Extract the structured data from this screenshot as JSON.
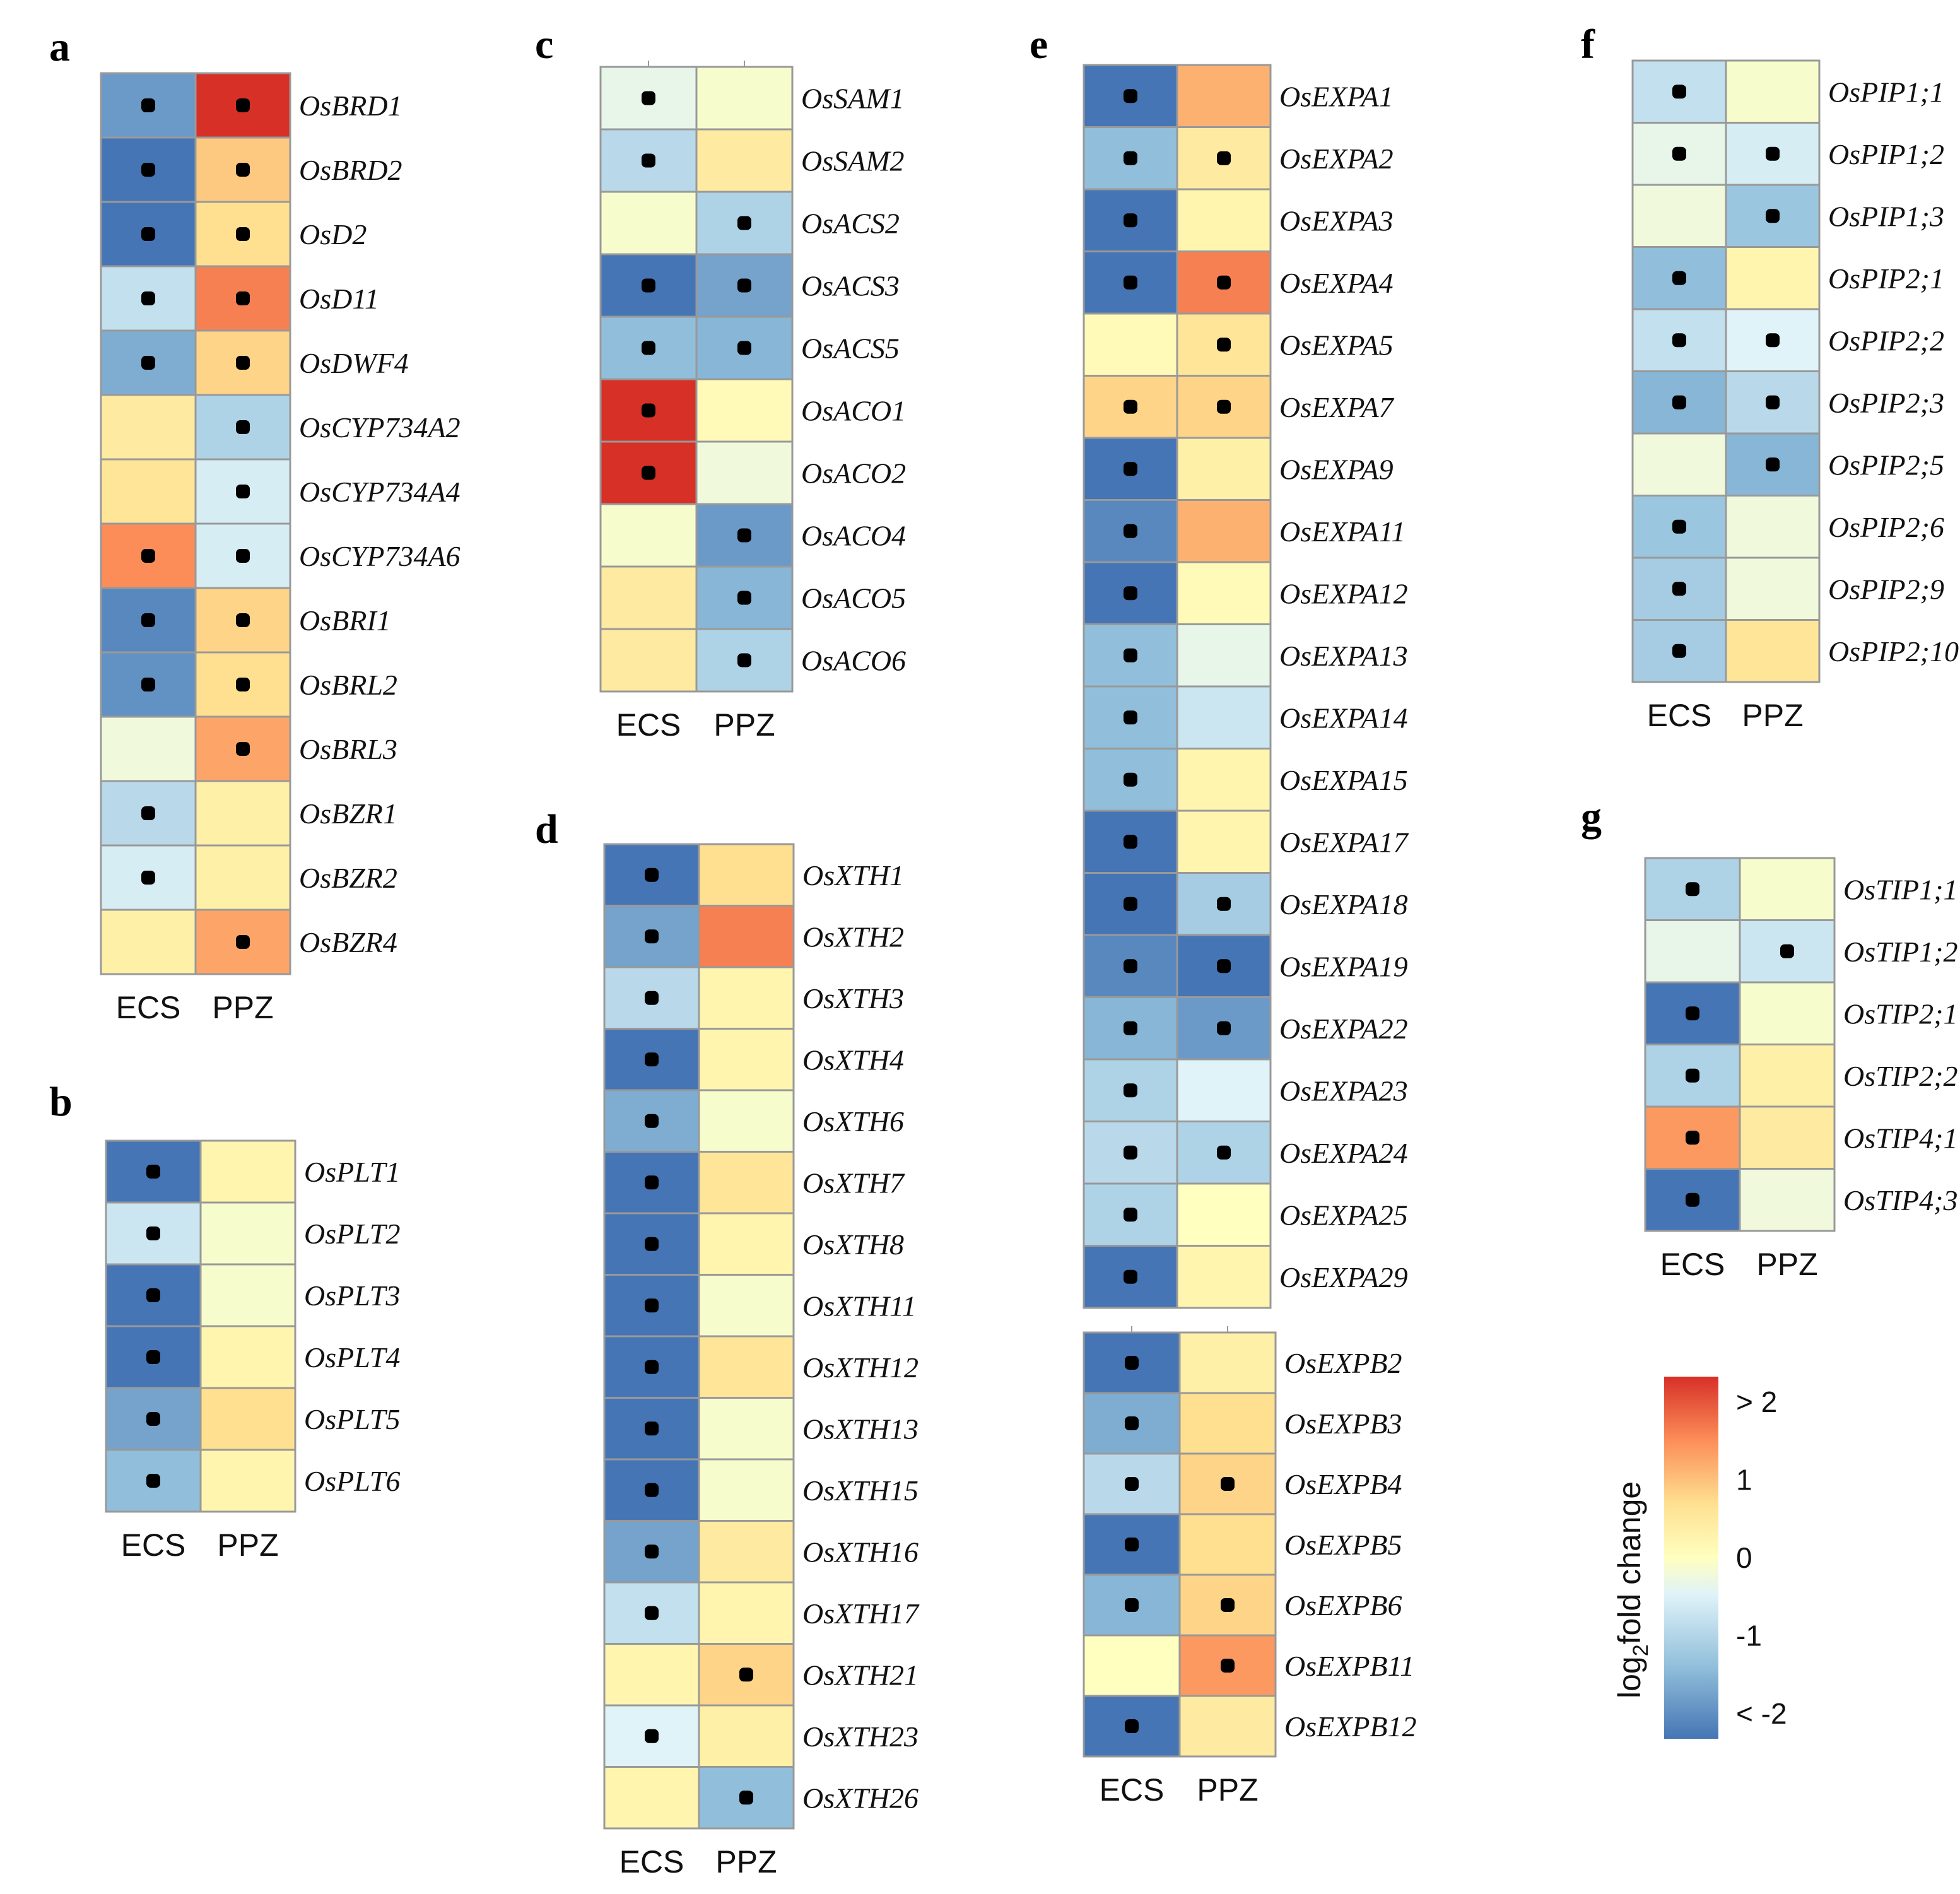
{
  "chart_data": [
    {
      "type": "heatmap",
      "panel": "a",
      "columns": [
        "ECS",
        "PPZ"
      ],
      "rows": [
        {
          "gene": "OsBRD1",
          "ECS": -1.6,
          "PPZ": 2.3,
          "sig": [
            true,
            true
          ]
        },
        {
          "gene": "OsBRD2",
          "ECS": -2.0,
          "PPZ": 0.8,
          "sig": [
            true,
            true
          ]
        },
        {
          "gene": "OsD2",
          "ECS": -2.0,
          "PPZ": 0.6,
          "sig": [
            true,
            true
          ]
        },
        {
          "gene": "OsD11",
          "ECS": -0.7,
          "PPZ": 1.4,
          "sig": [
            true,
            true
          ]
        },
        {
          "gene": "OsDWF4",
          "ECS": -1.4,
          "PPZ": 0.7,
          "sig": [
            true,
            true
          ]
        },
        {
          "gene": "OsCYP734A2",
          "ECS": 0.4,
          "PPZ": -0.9,
          "sig": [
            false,
            true
          ]
        },
        {
          "gene": "OsCYP734A4",
          "ECS": 0.5,
          "PPZ": -0.5,
          "sig": [
            false,
            true
          ]
        },
        {
          "gene": "OsCYP734A6",
          "ECS": 1.3,
          "PPZ": -0.5,
          "sig": [
            true,
            true
          ]
        },
        {
          "gene": "OsBRI1",
          "ECS": -1.8,
          "PPZ": 0.7,
          "sig": [
            true,
            true
          ]
        },
        {
          "gene": "OsBRL2",
          "ECS": -1.7,
          "PPZ": 0.6,
          "sig": [
            true,
            true
          ]
        },
        {
          "gene": "OsBRL3",
          "ECS": -0.2,
          "PPZ": 1.1,
          "sig": [
            false,
            true
          ]
        },
        {
          "gene": "OsBZR1",
          "ECS": -0.8,
          "PPZ": 0.3,
          "sig": [
            true,
            false
          ]
        },
        {
          "gene": "OsBZR2",
          "ECS": -0.5,
          "PPZ": 0.3,
          "sig": [
            true,
            false
          ]
        },
        {
          "gene": "OsBZR4",
          "ECS": 0.3,
          "PPZ": 1.1,
          "sig": [
            false,
            true
          ]
        }
      ]
    },
    {
      "type": "heatmap",
      "panel": "b",
      "columns": [
        "ECS",
        "PPZ"
      ],
      "rows": [
        {
          "gene": "OsPLT1",
          "ECS": -2.0,
          "PPZ": 0.2,
          "sig": [
            true,
            false
          ]
        },
        {
          "gene": "OsPLT2",
          "ECS": -0.6,
          "PPZ": -0.1,
          "sig": [
            true,
            false
          ]
        },
        {
          "gene": "OsPLT3",
          "ECS": -2.0,
          "PPZ": -0.1,
          "sig": [
            true,
            false
          ]
        },
        {
          "gene": "OsPLT4",
          "ECS": -2.0,
          "PPZ": 0.2,
          "sig": [
            true,
            false
          ]
        },
        {
          "gene": "OsPLT5",
          "ECS": -1.5,
          "PPZ": 0.6,
          "sig": [
            true,
            false
          ]
        },
        {
          "gene": "OsPLT6",
          "ECS": -1.2,
          "PPZ": 0.2,
          "sig": [
            true,
            false
          ]
        }
      ]
    },
    {
      "type": "heatmap",
      "panel": "c",
      "columns": [
        "ECS",
        "PPZ"
      ],
      "rows": [
        {
          "gene": "OsSAM1",
          "ECS": -0.3,
          "PPZ": -0.1,
          "sig": [
            true,
            false
          ]
        },
        {
          "gene": "OsSAM2",
          "ECS": -0.8,
          "PPZ": 0.4,
          "sig": [
            true,
            false
          ]
        },
        {
          "gene": "OsACS2",
          "ECS": -0.1,
          "PPZ": -0.9,
          "sig": [
            false,
            true
          ]
        },
        {
          "gene": "OsACS3",
          "ECS": -2.0,
          "PPZ": -1.5,
          "sig": [
            true,
            true
          ]
        },
        {
          "gene": "OsACS5",
          "ECS": -1.2,
          "PPZ": -1.3,
          "sig": [
            true,
            true
          ]
        },
        {
          "gene": "OsACO1",
          "ECS": 2.3,
          "PPZ": 0.1,
          "sig": [
            true,
            false
          ]
        },
        {
          "gene": "OsACO2",
          "ECS": 2.3,
          "PPZ": -0.2,
          "sig": [
            true,
            false
          ]
        },
        {
          "gene": "OsACO4",
          "ECS": -0.1,
          "PPZ": -1.6,
          "sig": [
            false,
            true
          ]
        },
        {
          "gene": "OsACO5",
          "ECS": 0.4,
          "PPZ": -1.3,
          "sig": [
            false,
            true
          ]
        },
        {
          "gene": "OsACO6",
          "ECS": 0.4,
          "PPZ": -0.9,
          "sig": [
            false,
            true
          ]
        }
      ]
    },
    {
      "type": "heatmap",
      "panel": "d",
      "columns": [
        "ECS",
        "PPZ"
      ],
      "rows": [
        {
          "gene": "OsXTH1",
          "ECS": -2.0,
          "PPZ": 0.6,
          "sig": [
            true,
            false
          ]
        },
        {
          "gene": "OsXTH2",
          "ECS": -1.5,
          "PPZ": 1.4,
          "sig": [
            true,
            false
          ]
        },
        {
          "gene": "OsXTH3",
          "ECS": -0.8,
          "PPZ": 0.2,
          "sig": [
            true,
            false
          ]
        },
        {
          "gene": "OsXTH4",
          "ECS": -2.0,
          "PPZ": 0.2,
          "sig": [
            true,
            false
          ]
        },
        {
          "gene": "OsXTH6",
          "ECS": -1.4,
          "PPZ": -0.1,
          "sig": [
            true,
            false
          ]
        },
        {
          "gene": "OsXTH7",
          "ECS": -2.0,
          "PPZ": 0.5,
          "sig": [
            true,
            false
          ]
        },
        {
          "gene": "OsXTH8",
          "ECS": -2.0,
          "PPZ": 0.2,
          "sig": [
            true,
            false
          ]
        },
        {
          "gene": "OsXTH11",
          "ECS": -2.0,
          "PPZ": -0.1,
          "sig": [
            true,
            false
          ]
        },
        {
          "gene": "OsXTH12",
          "ECS": -2.0,
          "PPZ": 0.5,
          "sig": [
            true,
            false
          ]
        },
        {
          "gene": "OsXTH13",
          "ECS": -2.0,
          "PPZ": -0.1,
          "sig": [
            true,
            false
          ]
        },
        {
          "gene": "OsXTH15",
          "ECS": -2.0,
          "PPZ": -0.1,
          "sig": [
            true,
            false
          ]
        },
        {
          "gene": "OsXTH16",
          "ECS": -1.5,
          "PPZ": 0.4,
          "sig": [
            true,
            false
          ]
        },
        {
          "gene": "OsXTH17",
          "ECS": -0.7,
          "PPZ": 0.2,
          "sig": [
            true,
            false
          ]
        },
        {
          "gene": "OsXTH21",
          "ECS": 0.2,
          "PPZ": 0.7,
          "sig": [
            false,
            true
          ]
        },
        {
          "gene": "OsXTH23",
          "ECS": -0.4,
          "PPZ": 0.3,
          "sig": [
            true,
            false
          ]
        },
        {
          "gene": "OsXTH26",
          "ECS": 0.2,
          "PPZ": -1.2,
          "sig": [
            false,
            true
          ]
        }
      ]
    },
    {
      "type": "heatmap",
      "panel": "e",
      "columns": [
        "ECS",
        "PPZ"
      ],
      "rows": [
        {
          "gene": "OsEXPA1",
          "ECS": -2.0,
          "PPZ": 1.0,
          "sig": [
            true,
            false
          ]
        },
        {
          "gene": "OsEXPA2",
          "ECS": -1.2,
          "PPZ": 0.4,
          "sig": [
            true,
            true
          ]
        },
        {
          "gene": "OsEXPA3",
          "ECS": -2.0,
          "PPZ": 0.2,
          "sig": [
            true,
            false
          ]
        },
        {
          "gene": "OsEXPA4",
          "ECS": -2.0,
          "PPZ": 1.4,
          "sig": [
            true,
            true
          ]
        },
        {
          "gene": "OsEXPA5",
          "ECS": 0.1,
          "PPZ": 0.5,
          "sig": [
            false,
            true
          ]
        },
        {
          "gene": "OsEXPA7",
          "ECS": 0.7,
          "PPZ": 0.7,
          "sig": [
            true,
            true
          ]
        },
        {
          "gene": "OsEXPA9",
          "ECS": -2.0,
          "PPZ": 0.3,
          "sig": [
            true,
            false
          ]
        },
        {
          "gene": "OsEXPA11",
          "ECS": -1.8,
          "PPZ": 1.0,
          "sig": [
            true,
            false
          ]
        },
        {
          "gene": "OsEXPA12",
          "ECS": -2.0,
          "PPZ": 0.1,
          "sig": [
            true,
            false
          ]
        },
        {
          "gene": "OsEXPA13",
          "ECS": -1.2,
          "PPZ": -0.3,
          "sig": [
            true,
            false
          ]
        },
        {
          "gene": "OsEXPA14",
          "ECS": -1.2,
          "PPZ": -0.6,
          "sig": [
            true,
            false
          ]
        },
        {
          "gene": "OsEXPA15",
          "ECS": -1.2,
          "PPZ": 0.2,
          "sig": [
            true,
            false
          ]
        },
        {
          "gene": "OsEXPA17",
          "ECS": -2.0,
          "PPZ": 0.2,
          "sig": [
            true,
            false
          ]
        },
        {
          "gene": "OsEXPA18",
          "ECS": -2.0,
          "PPZ": -1.0,
          "sig": [
            true,
            true
          ]
        },
        {
          "gene": "OsEXPA19",
          "ECS": -1.8,
          "PPZ": -2.0,
          "sig": [
            true,
            true
          ]
        },
        {
          "gene": "OsEXPA22",
          "ECS": -1.3,
          "PPZ": -1.6,
          "sig": [
            true,
            true
          ]
        },
        {
          "gene": "OsEXPA23",
          "ECS": -0.9,
          "PPZ": -0.4,
          "sig": [
            true,
            false
          ]
        },
        {
          "gene": "OsEXPA24",
          "ECS": -0.8,
          "PPZ": -0.9,
          "sig": [
            true,
            true
          ]
        },
        {
          "gene": "OsEXPA25",
          "ECS": -0.9,
          "PPZ": 0.0,
          "sig": [
            true,
            false
          ]
        },
        {
          "gene": "OsEXPA29",
          "ECS": -2.0,
          "PPZ": 0.2,
          "sig": [
            true,
            false
          ]
        }
      ]
    },
    {
      "type": "heatmap",
      "panel": "e2",
      "columns": [
        "ECS",
        "PPZ"
      ],
      "rows": [
        {
          "gene": "OsEXPB2",
          "ECS": -2.0,
          "PPZ": 0.3,
          "sig": [
            true,
            false
          ]
        },
        {
          "gene": "OsEXPB3",
          "ECS": -1.4,
          "PPZ": 0.6,
          "sig": [
            true,
            false
          ]
        },
        {
          "gene": "OsEXPB4",
          "ECS": -0.8,
          "PPZ": 0.7,
          "sig": [
            true,
            true
          ]
        },
        {
          "gene": "OsEXPB5",
          "ECS": -2.0,
          "PPZ": 0.6,
          "sig": [
            true,
            false
          ]
        },
        {
          "gene": "OsEXPB6",
          "ECS": -1.3,
          "PPZ": 0.7,
          "sig": [
            true,
            true
          ]
        },
        {
          "gene": "OsEXPB11",
          "ECS": 0.0,
          "PPZ": 1.2,
          "sig": [
            false,
            true
          ]
        },
        {
          "gene": "OsEXPB12",
          "ECS": -2.0,
          "PPZ": 0.4,
          "sig": [
            true,
            false
          ]
        }
      ]
    },
    {
      "type": "heatmap",
      "panel": "f",
      "columns": [
        "ECS",
        "PPZ"
      ],
      "rows": [
        {
          "gene": "OsPIP1;1",
          "ECS": -0.7,
          "PPZ": -0.1,
          "sig": [
            true,
            false
          ]
        },
        {
          "gene": "OsPIP1;2",
          "ECS": -0.3,
          "PPZ": -0.5,
          "sig": [
            true,
            true
          ]
        },
        {
          "gene": "OsPIP1;3",
          "ECS": -0.2,
          "PPZ": -1.1,
          "sig": [
            false,
            true
          ]
        },
        {
          "gene": "OsPIP2;1",
          "ECS": -1.2,
          "PPZ": 0.2,
          "sig": [
            true,
            false
          ]
        },
        {
          "gene": "OsPIP2;2",
          "ECS": -0.7,
          "PPZ": -0.4,
          "sig": [
            true,
            true
          ]
        },
        {
          "gene": "OsPIP2;3",
          "ECS": -1.3,
          "PPZ": -0.8,
          "sig": [
            true,
            true
          ]
        },
        {
          "gene": "OsPIP2;5",
          "ECS": -0.2,
          "PPZ": -1.3,
          "sig": [
            false,
            true
          ]
        },
        {
          "gene": "OsPIP2;6",
          "ECS": -1.1,
          "PPZ": -0.2,
          "sig": [
            true,
            false
          ]
        },
        {
          "gene": "OsPIP2;9",
          "ECS": -1.0,
          "PPZ": -0.2,
          "sig": [
            true,
            false
          ]
        },
        {
          "gene": "OsPIP2;10",
          "ECS": -1.0,
          "PPZ": 0.5,
          "sig": [
            true,
            false
          ]
        }
      ]
    },
    {
      "type": "heatmap",
      "panel": "g",
      "columns": [
        "ECS",
        "PPZ"
      ],
      "rows": [
        {
          "gene": "OsTIP1;1",
          "ECS": -0.9,
          "PPZ": -0.1,
          "sig": [
            true,
            false
          ]
        },
        {
          "gene": "OsTIP1;2",
          "ECS": -0.3,
          "PPZ": -0.6,
          "sig": [
            false,
            true
          ]
        },
        {
          "gene": "OsTIP2;1",
          "ECS": -2.0,
          "PPZ": -0.1,
          "sig": [
            true,
            false
          ]
        },
        {
          "gene": "OsTIP2;2",
          "ECS": -0.9,
          "PPZ": 0.3,
          "sig": [
            true,
            false
          ]
        },
        {
          "gene": "OsTIP4;1",
          "ECS": 1.2,
          "PPZ": 0.4,
          "sig": [
            true,
            false
          ]
        },
        {
          "gene": "OsTIP4;3",
          "ECS": -2.0,
          "PPZ": -0.2,
          "sig": [
            true,
            false
          ]
        }
      ]
    }
  ],
  "legend": {
    "title_main": "log",
    "title_sub": "2",
    "title_rest": "fold change",
    "ticks": [
      {
        "label": "> 2",
        "value": 2
      },
      {
        "label": "1",
        "value": 1
      },
      {
        "label": "0",
        "value": 0
      },
      {
        "label": "-1",
        "value": -1
      },
      {
        "label": "< -2",
        "value": -2
      }
    ],
    "range": [
      -2,
      2
    ]
  },
  "colors": {
    "scale": [
      "#4575b4",
      "#91bfdb",
      "#e0f3f8",
      "#ffffbf",
      "#fee090",
      "#fc8d59",
      "#d73027"
    ],
    "scale_values": [
      -2,
      -1.2,
      -0.4,
      0,
      0.6,
      1.3,
      2
    ],
    "grid": "#999999",
    "dot": "#000000"
  }
}
